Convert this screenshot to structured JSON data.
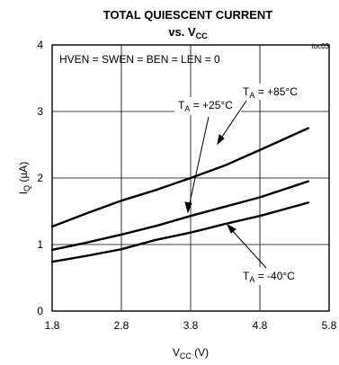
{
  "chart_data": {
    "type": "line",
    "title_line1": "TOTAL QUIESCENT CURRENT",
    "title_line2_prefix": "vs. V",
    "title_line2_sub": "CC",
    "figure_ref": "toc03",
    "condition_label": "HVEN = SWEN = BEN = LEN = 0",
    "xlabel_main": "V",
    "xlabel_sub": "CC",
    "xlabel_unit": " (V)",
    "ylabel_main": "I",
    "ylabel_sub": "Q",
    "ylabel_unit": " (µA)",
    "xlim": [
      1.8,
      5.8
    ],
    "ylim": [
      0,
      4
    ],
    "x_ticks": [
      1.8,
      2.8,
      3.8,
      4.8,
      5.8
    ],
    "x_tick_labels": [
      "1.8",
      "2.8",
      "3.8",
      "4.8",
      "5.8"
    ],
    "y_ticks": [
      0,
      1,
      2,
      3,
      4
    ],
    "y_tick_labels": [
      "0",
      "1",
      "2",
      "3",
      "4"
    ],
    "grid": true,
    "series": [
      {
        "label_prefix": "T",
        "label_sub": "A",
        "label_value": " = +85°C",
        "x": [
          1.8,
          2.3,
          2.8,
          3.3,
          3.8,
          4.3,
          4.8,
          5.5
        ],
        "y": [
          1.27,
          1.47,
          1.66,
          1.82,
          2.0,
          2.19,
          2.42,
          2.75
        ]
      },
      {
        "label_prefix": "T",
        "label_sub": "A",
        "label_value": " = +25°C",
        "x": [
          1.8,
          2.3,
          2.8,
          3.3,
          3.8,
          4.3,
          4.8,
          5.5
        ],
        "y": [
          0.92,
          1.03,
          1.15,
          1.28,
          1.43,
          1.57,
          1.71,
          1.95
        ]
      },
      {
        "label_prefix": "T",
        "label_sub": "A",
        "label_value": " = -40°C",
        "x": [
          1.8,
          2.3,
          2.8,
          3.3,
          3.8,
          4.3,
          4.8,
          5.5
        ],
        "y": [
          0.74,
          0.83,
          0.93,
          1.07,
          1.18,
          1.31,
          1.43,
          1.63
        ]
      }
    ]
  }
}
